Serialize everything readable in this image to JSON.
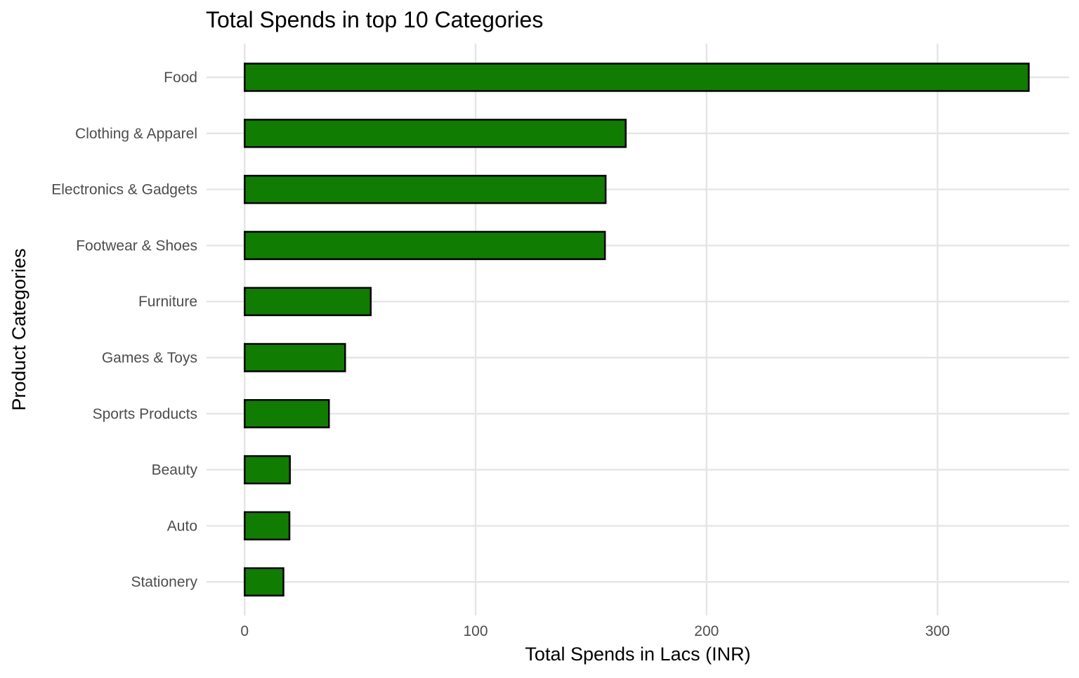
{
  "chart_data": {
    "type": "bar",
    "orientation": "horizontal",
    "title": "Total Spends in top 10 Categories",
    "xlabel": "Total Spends in Lacs (INR)",
    "ylabel": "Product Categories",
    "categories": [
      "Food",
      "Clothing & Apparel",
      "Electronics & Gadgets",
      "Footwear & Shoes",
      "Furniture",
      "Games & Toys",
      "Sports Products",
      "Beauty",
      "Auto",
      "Stationery"
    ],
    "values": [
      339.5,
      165,
      156.3,
      156,
      54.6,
      43.5,
      36.5,
      19.6,
      19.4,
      16.8
    ],
    "xlim": [
      -16.5,
      357
    ],
    "x_ticks": [
      "0",
      "100",
      "200",
      "300"
    ],
    "bar_fill": "#117C02",
    "bar_outline": "#000000",
    "grid": true,
    "legend": "none"
  }
}
